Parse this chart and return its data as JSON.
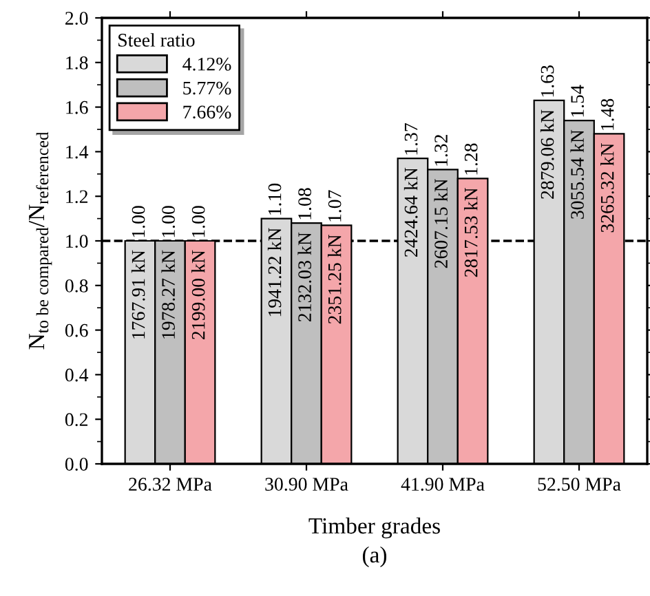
{
  "chart_data": {
    "type": "bar",
    "xlabel": "Timber grades",
    "ylabel": "N$_{to be compared}$/N$_{referenced}$",
    "categories": [
      "26.32 MPa",
      "30.90 MPa",
      "41.90 MPa",
      "52.50 MPa"
    ],
    "legend_title": "Steel ratio",
    "legend": "top left",
    "series": [
      {
        "name": "4.12%",
        "color": "#d9d9d9",
        "values": [
          1.0,
          1.1,
          1.37,
          1.63
        ],
        "value_labels": [
          "1.00",
          "1.10",
          "1.37",
          "1.63"
        ]
      },
      {
        "name": "5.77%",
        "color": "#bfbfbf",
        "values": [
          1.0,
          1.08,
          1.32,
          1.54
        ],
        "value_labels": [
          "1.00",
          "1.08",
          "1.32",
          "1.54"
        ]
      },
      {
        "name": "7.66%",
        "color": "#f4a6aa",
        "values": [
          1.0,
          1.07,
          1.28,
          1.48
        ],
        "value_labels": [
          "1.00",
          "1.07",
          "1.28",
          "1.48"
        ]
      }
    ],
    "ylim": [
      0,
      2.0
    ],
    "yticks": [
      {
        "value": 0,
        "label": "0.0"
      },
      {
        "value": 0.2,
        "label": "0.2"
      },
      {
        "value": 0.4,
        "label": "0.4"
      },
      {
        "value": 0.6,
        "label": "0.6"
      },
      {
        "value": 0.8,
        "label": "0.8"
      },
      {
        "value": 1.0,
        "label": "1.0"
      },
      {
        "value": 1.2,
        "label": "1.2"
      },
      {
        "value": 1.4,
        "label": "1.4"
      },
      {
        "value": 1.6,
        "label": "1.6"
      },
      {
        "value": 1.8,
        "label": "1.8"
      },
      {
        "value": 2.0,
        "label": "2.0"
      }
    ],
    "ref_lines": [
      {
        "axis": "y",
        "value": 1.0,
        "color": "#000000",
        "line_style": "dashed"
      }
    ],
    "grid": false,
    "annotations": [
      "1767.91 kN",
      "1978.27 kN",
      "2199.00 kN",
      "1941.22 kN",
      "2132.03 kN",
      "2351.25 kN",
      "2424.64 kN",
      "2607.15 kN",
      "2817.53 kN",
      "2879.06 kN",
      "3055.54 kN",
      "3265.32 kN",
      "(a)"
    ]
  }
}
